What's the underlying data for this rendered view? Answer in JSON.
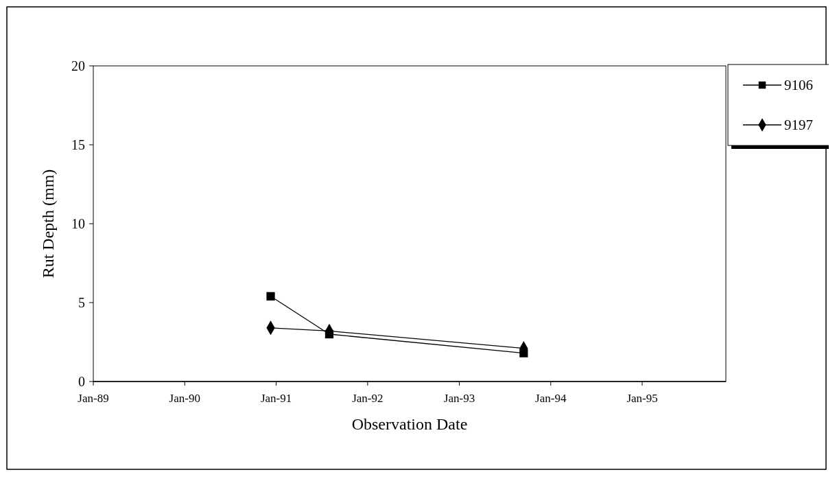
{
  "chart_data": {
    "type": "line",
    "xlabel": "Observation Date",
    "ylabel": "Rut Depth (mm)",
    "series": [
      {
        "name": "9106",
        "color": "#000000",
        "marker": "square",
        "x": [
          "1990-12-10",
          "1991-08-01",
          "1993-09-15"
        ],
        "values": [
          5.4,
          3.0,
          1.8
        ]
      },
      {
        "name": "9197",
        "color": "#000000",
        "marker": "diamond",
        "x": [
          "1990-12-10",
          "1991-08-01",
          "1993-09-15"
        ],
        "values": [
          3.4,
          3.2,
          2.1
        ]
      }
    ],
    "xlim": [
      "1989-01-01",
      "1995-12-01"
    ],
    "xticks": [
      {
        "value": "1989-01-01",
        "label": "Jan-89"
      },
      {
        "value": "1990-01-01",
        "label": "Jan-90"
      },
      {
        "value": "1991-01-01",
        "label": "Jan-91"
      },
      {
        "value": "1992-01-01",
        "label": "Jan-92"
      },
      {
        "value": "1993-01-01",
        "label": "Jan-93"
      },
      {
        "value": "1994-01-01",
        "label": "Jan-94"
      },
      {
        "value": "1995-01-01",
        "label": "Jan-95"
      }
    ],
    "ylim": [
      0,
      20
    ],
    "yticks": [
      0,
      5,
      10,
      15,
      20
    ],
    "grid": false,
    "legend": "top right",
    "line_style": "solid"
  }
}
